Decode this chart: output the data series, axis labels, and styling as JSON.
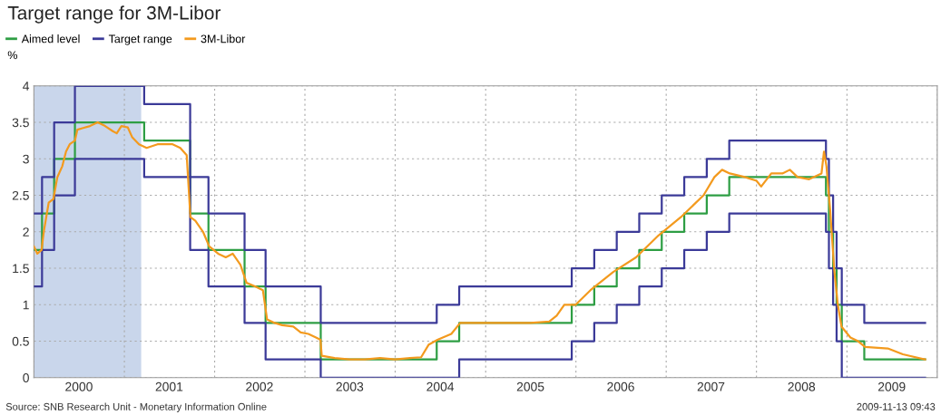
{
  "chart_data": {
    "type": "step",
    "title": "Target range for 3M-Libor",
    "ylabel": "%",
    "xlim": [
      "2000-01-01",
      "2010-01-01"
    ],
    "xticks": [
      {
        "value": "2000-01-01",
        "label": null
      },
      {
        "value": "2001-01-01",
        "label": null
      },
      {
        "value": "2002-01-01",
        "label": null
      },
      {
        "value": "2003-01-01",
        "label": null
      },
      {
        "value": "2004-01-01",
        "label": null
      },
      {
        "value": "2005-01-01",
        "label": null
      },
      {
        "value": "2006-01-01",
        "label": null
      },
      {
        "value": "2007-01-01",
        "label": null
      },
      {
        "value": "2008-01-01",
        "label": null
      },
      {
        "value": "2009-01-01",
        "label": null
      },
      {
        "value": "2010-01-01",
        "label": null
      },
      {
        "value": "2000-07-01",
        "label": "2000"
      },
      {
        "value": "2001-07-01",
        "label": "2001"
      },
      {
        "value": "2002-07-01",
        "label": "2002"
      },
      {
        "value": "2003-07-01",
        "label": "2003"
      },
      {
        "value": "2004-07-01",
        "label": "2004"
      },
      {
        "value": "2005-07-01",
        "label": "2005"
      },
      {
        "value": "2006-07-01",
        "label": "2006"
      },
      {
        "value": "2007-07-01",
        "label": "2007"
      },
      {
        "value": "2008-07-01",
        "label": "2008"
      },
      {
        "value": "2009-07-01",
        "label": "2009"
      }
    ],
    "ylim": [
      0,
      4
    ],
    "yticks": [
      0,
      0.5,
      1,
      1.5,
      2,
      2.5,
      3,
      3.5,
      4
    ],
    "grid": true,
    "legend": "top left",
    "line_style": "solid",
    "marker": "none",
    "bands": [
      {
        "axis": "x",
        "from": "2000-01-01",
        "to": "2001-03-10",
        "color": "#c9d6eb"
      }
    ],
    "series": [
      {
        "name": "Aimed level",
        "color": "#2e9e44",
        "x": [
          "2000-01-01",
          "2000-02-03",
          "2000-03-23",
          "2000-06-15",
          "2001-03-22",
          "2001-09-24",
          "2001-12-07",
          "2002-05-02",
          "2002-07-26",
          "2003-03-06",
          "2004-06-17",
          "2004-09-16",
          "2005-12-15",
          "2006-03-16",
          "2006-06-15",
          "2006-09-14",
          "2006-12-14",
          "2007-03-15",
          "2007-06-14",
          "2007-09-13",
          "2008-10-08",
          "2008-10-20",
          "2008-11-06",
          "2008-11-20",
          "2008-12-11",
          "2009-03-12",
          "2009-11-13"
        ],
        "values": [
          1.75,
          2.25,
          3.0,
          3.5,
          3.25,
          2.25,
          1.75,
          1.25,
          0.75,
          0.25,
          0.5,
          0.75,
          1.0,
          1.25,
          1.5,
          1.75,
          2.0,
          2.25,
          2.5,
          2.75,
          2.5,
          2.0,
          1.5,
          1.0,
          0.5,
          0.25,
          0.25
        ]
      },
      {
        "name": "Target range",
        "color": "#3b3a98",
        "x": [
          "2000-01-01",
          "2000-02-03",
          "2000-03-23",
          "2000-06-15",
          "2001-03-22",
          "2001-09-24",
          "2001-12-07",
          "2002-05-02",
          "2002-07-26",
          "2003-03-06",
          "2004-06-17",
          "2004-09-16",
          "2005-12-15",
          "2006-03-16",
          "2006-06-15",
          "2006-09-14",
          "2006-12-14",
          "2007-03-15",
          "2007-06-14",
          "2007-09-13",
          "2008-10-08",
          "2008-10-20",
          "2008-11-06",
          "2008-11-20",
          "2008-12-11",
          "2009-03-12",
          "2009-11-13"
        ],
        "values": [
          2.25,
          2.75,
          3.5,
          4.0,
          3.75,
          2.75,
          2.25,
          1.75,
          1.25,
          0.75,
          1.0,
          1.25,
          1.5,
          1.75,
          2.0,
          2.25,
          2.5,
          2.75,
          3.0,
          3.25,
          3.0,
          2.5,
          2.0,
          1.5,
          1.0,
          0.75,
          0.75
        ]
      },
      {
        "color": "#3b3a98",
        "x": [
          "2000-01-01",
          "2000-02-03",
          "2000-03-23",
          "2000-06-15",
          "2001-03-22",
          "2001-09-24",
          "2001-12-07",
          "2002-05-02",
          "2002-07-26",
          "2003-03-06",
          "2004-06-17",
          "2004-09-16",
          "2005-12-15",
          "2006-03-16",
          "2006-06-15",
          "2006-09-14",
          "2006-12-14",
          "2007-03-15",
          "2007-06-14",
          "2007-09-13",
          "2008-10-08",
          "2008-10-20",
          "2008-11-06",
          "2008-11-20",
          "2008-12-11",
          "2009-03-12",
          "2009-11-13"
        ],
        "values": [
          1.25,
          1.75,
          2.5,
          3.0,
          2.75,
          1.75,
          1.25,
          0.75,
          0.25,
          0,
          0,
          0.25,
          0.5,
          0.75,
          1.0,
          1.25,
          1.5,
          1.75,
          2.0,
          2.25,
          2.0,
          1.5,
          1.0,
          0.5,
          0,
          0,
          0
        ]
      },
      {
        "name": "3M-Libor",
        "color": "#f39a1e",
        "type": "line",
        "x": [
          "2000-01-01",
          "2000-01-15",
          "2000-02-01",
          "2000-02-10",
          "2000-03-01",
          "2000-03-20",
          "2000-04-05",
          "2000-04-25",
          "2000-05-10",
          "2000-05-25",
          "2000-06-15",
          "2000-06-25",
          "2000-07-15",
          "2000-08-15",
          "2000-09-15",
          "2000-10-15",
          "2000-11-15",
          "2000-12-01",
          "2000-12-20",
          "2001-01-15",
          "2001-02-01",
          "2001-03-01",
          "2001-04-01",
          "2001-05-15",
          "2001-06-15",
          "2001-07-15",
          "2001-08-15",
          "2001-09-10",
          "2001-09-25",
          "2001-10-15",
          "2001-11-15",
          "2001-12-10",
          "2002-01-15",
          "2002-02-15",
          "2002-03-15",
          "2002-04-15",
          "2002-05-10",
          "2002-06-15",
          "2002-07-15",
          "2002-08-01",
          "2002-09-01",
          "2002-10-01",
          "2002-11-15",
          "2002-12-15",
          "2003-01-15",
          "2003-02-15",
          "2003-03-05",
          "2003-03-10",
          "2003-05-01",
          "2003-07-01",
          "2003-09-01",
          "2003-11-01",
          "2004-01-01",
          "2004-03-01",
          "2004-04-15",
          "2004-05-15",
          "2004-06-20",
          "2004-08-15",
          "2004-09-20",
          "2004-11-15",
          "2005-03-01",
          "2005-07-01",
          "2005-09-15",
          "2005-10-15",
          "2005-11-15",
          "2005-12-31",
          "2006-03-01",
          "2006-06-01",
          "2006-09-01",
          "2006-12-01",
          "2007-03-01",
          "2007-06-01",
          "2007-07-15",
          "2007-08-15",
          "2007-09-15",
          "2007-11-15",
          "2008-01-01",
          "2008-01-20",
          "2008-03-01",
          "2008-04-15",
          "2008-05-15",
          "2008-06-15",
          "2008-08-01",
          "2008-09-20",
          "2008-09-30",
          "2008-10-10",
          "2008-10-25",
          "2008-11-10",
          "2008-11-25",
          "2008-12-10",
          "2009-01-15",
          "2009-02-15",
          "2009-03-15",
          "2009-06-15",
          "2009-08-15",
          "2009-11-13"
        ],
        "values": [
          1.8,
          1.7,
          1.75,
          2.0,
          2.4,
          2.45,
          2.75,
          2.9,
          3.1,
          3.2,
          3.25,
          3.4,
          3.42,
          3.45,
          3.5,
          3.45,
          3.38,
          3.35,
          3.45,
          3.43,
          3.3,
          3.2,
          3.15,
          3.2,
          3.2,
          3.2,
          3.15,
          3.05,
          2.2,
          2.15,
          2.0,
          1.8,
          1.7,
          1.65,
          1.7,
          1.55,
          1.3,
          1.25,
          1.2,
          0.8,
          0.75,
          0.72,
          0.7,
          0.62,
          0.6,
          0.55,
          0.52,
          0.3,
          0.27,
          0.25,
          0.25,
          0.27,
          0.25,
          0.27,
          0.28,
          0.45,
          0.52,
          0.6,
          0.75,
          0.75,
          0.75,
          0.75,
          0.77,
          0.85,
          1.0,
          1.0,
          1.2,
          1.45,
          1.65,
          1.95,
          2.2,
          2.5,
          2.75,
          2.85,
          2.8,
          2.75,
          2.7,
          2.62,
          2.8,
          2.8,
          2.85,
          2.75,
          2.72,
          2.8,
          3.1,
          2.9,
          2.3,
          1.5,
          1.0,
          0.7,
          0.55,
          0.5,
          0.42,
          0.4,
          0.32,
          0.25
        ]
      }
    ],
    "annotations": [
      "Source: SNB Research Unit - Monetary Information Online",
      "2009-11-13 09:43"
    ]
  }
}
